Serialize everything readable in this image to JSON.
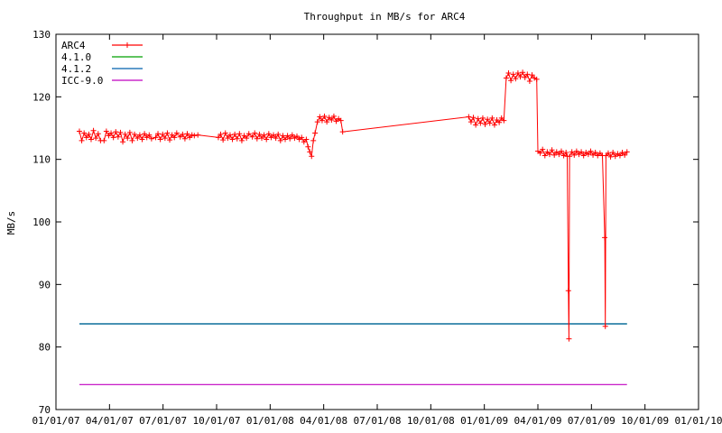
{
  "chart_data": {
    "type": "line",
    "title": "Throughput in MB/s for ARC4",
    "xlabel": "",
    "ylabel": "MB/s",
    "xlim": [
      "2007-01-01",
      "2010-01-01"
    ],
    "ylim": [
      70,
      130
    ],
    "grid": false,
    "legend": "top-left",
    "x_ticks": [
      "01/01/07",
      "04/01/07",
      "07/01/07",
      "10/01/07",
      "01/01/08",
      "04/01/08",
      "07/01/08",
      "10/01/08",
      "01/01/09",
      "04/01/09",
      "07/01/09",
      "10/01/09",
      "01/01/10"
    ],
    "y_ticks": [
      70,
      80,
      90,
      100,
      110,
      120,
      130
    ],
    "series": [
      {
        "name": "ARC4",
        "color": "#ff0000",
        "marker": "plus",
        "points": [
          [
            "2007-02-10",
            114.5
          ],
          [
            "2007-02-14",
            113.0
          ],
          [
            "2007-02-18",
            114.2
          ],
          [
            "2007-02-22",
            113.5
          ],
          [
            "2007-02-26",
            114.0
          ],
          [
            "2007-03-02",
            113.2
          ],
          [
            "2007-03-06",
            114.6
          ],
          [
            "2007-03-10",
            113.4
          ],
          [
            "2007-03-14",
            114.1
          ],
          [
            "2007-03-18",
            113.0
          ],
          [
            "2007-03-24",
            113.0
          ],
          [
            "2007-03-28",
            114.5
          ],
          [
            "2007-04-01",
            113.8
          ],
          [
            "2007-04-05",
            114.2
          ],
          [
            "2007-04-09",
            113.5
          ],
          [
            "2007-04-13",
            114.4
          ],
          [
            "2007-04-17",
            113.6
          ],
          [
            "2007-04-21",
            114.3
          ],
          [
            "2007-04-25",
            112.8
          ],
          [
            "2007-04-29",
            114.0
          ],
          [
            "2007-05-03",
            113.4
          ],
          [
            "2007-05-07",
            114.3
          ],
          [
            "2007-05-11",
            113.0
          ],
          [
            "2007-05-15",
            114.0
          ],
          [
            "2007-05-20",
            113.4
          ],
          [
            "2007-05-24",
            113.9
          ],
          [
            "2007-05-28",
            113.2
          ],
          [
            "2007-06-01",
            114.1
          ],
          [
            "2007-06-05",
            113.5
          ],
          [
            "2007-06-09",
            113.9
          ],
          [
            "2007-06-13",
            113.3
          ],
          [
            "2007-06-20",
            113.5
          ],
          [
            "2007-06-24",
            114.1
          ],
          [
            "2007-06-28",
            113.2
          ],
          [
            "2007-07-02",
            114.0
          ],
          [
            "2007-07-06",
            113.4
          ],
          [
            "2007-07-10",
            114.2
          ],
          [
            "2007-07-14",
            113.1
          ],
          [
            "2007-07-18",
            113.9
          ],
          [
            "2007-07-22",
            113.5
          ],
          [
            "2007-07-26",
            114.2
          ],
          [
            "2007-08-01",
            113.6
          ],
          [
            "2007-08-05",
            114.0
          ],
          [
            "2007-08-09",
            113.3
          ],
          [
            "2007-08-13",
            114.1
          ],
          [
            "2007-08-17",
            113.5
          ],
          [
            "2007-08-21",
            113.9
          ],
          [
            "2007-08-25",
            113.8
          ],
          [
            "2007-08-31",
            113.9
          ],
          [
            "2007-10-05",
            113.5
          ],
          [
            "2007-10-09",
            114.0
          ],
          [
            "2007-10-13",
            113.1
          ],
          [
            "2007-10-17",
            114.2
          ],
          [
            "2007-10-21",
            113.4
          ],
          [
            "2007-10-25",
            113.9
          ],
          [
            "2007-10-29",
            113.2
          ],
          [
            "2007-11-02",
            114.0
          ],
          [
            "2007-11-06",
            113.3
          ],
          [
            "2007-11-10",
            114.1
          ],
          [
            "2007-11-14",
            113.0
          ],
          [
            "2007-11-18",
            113.8
          ],
          [
            "2007-11-22",
            113.4
          ],
          [
            "2007-11-26",
            114.1
          ],
          [
            "2007-12-02",
            113.6
          ],
          [
            "2007-12-06",
            114.2
          ],
          [
            "2007-12-10",
            113.3
          ],
          [
            "2007-12-14",
            114.0
          ],
          [
            "2007-12-18",
            113.4
          ],
          [
            "2007-12-22",
            113.9
          ],
          [
            "2007-12-26",
            113.2
          ],
          [
            "2007-12-30",
            114.1
          ],
          [
            "2008-01-03",
            113.5
          ],
          [
            "2008-01-07",
            113.9
          ],
          [
            "2008-01-11",
            113.4
          ],
          [
            "2008-01-15",
            114.0
          ],
          [
            "2008-01-19",
            113.0
          ],
          [
            "2008-01-23",
            113.8
          ],
          [
            "2008-01-27",
            113.2
          ],
          [
            "2008-01-31",
            113.8
          ],
          [
            "2008-02-04",
            113.3
          ],
          [
            "2008-02-08",
            113.9
          ],
          [
            "2008-02-12",
            113.4
          ],
          [
            "2008-02-16",
            113.7
          ],
          [
            "2008-02-20",
            113.2
          ],
          [
            "2008-02-24",
            113.5
          ],
          [
            "2008-02-28",
            112.8
          ],
          [
            "2008-03-03",
            113.2
          ],
          [
            "2008-03-06",
            112.0
          ],
          [
            "2008-03-09",
            111.2
          ],
          [
            "2008-03-12",
            110.5
          ],
          [
            "2008-03-15",
            113.0
          ],
          [
            "2008-03-18",
            114.2
          ],
          [
            "2008-03-22",
            116.0
          ],
          [
            "2008-03-26",
            116.8
          ],
          [
            "2008-03-30",
            116.2
          ],
          [
            "2008-04-03",
            116.9
          ],
          [
            "2008-04-07",
            116.0
          ],
          [
            "2008-04-11",
            116.7
          ],
          [
            "2008-04-15",
            116.3
          ],
          [
            "2008-04-19",
            116.9
          ],
          [
            "2008-04-23",
            116.1
          ],
          [
            "2008-04-27",
            116.5
          ],
          [
            "2008-05-01",
            116.2
          ],
          [
            "2008-05-04",
            114.4
          ],
          [
            "2008-12-05",
            116.8
          ],
          [
            "2008-12-09",
            116.0
          ],
          [
            "2008-12-13",
            116.7
          ],
          [
            "2008-12-17",
            115.5
          ],
          [
            "2008-12-21",
            116.5
          ],
          [
            "2008-12-25",
            115.8
          ],
          [
            "2008-12-29",
            116.6
          ],
          [
            "2009-01-02",
            115.6
          ],
          [
            "2009-01-06",
            116.4
          ],
          [
            "2009-01-10",
            115.8
          ],
          [
            "2009-01-14",
            116.6
          ],
          [
            "2009-01-18",
            115.5
          ],
          [
            "2009-01-22",
            116.3
          ],
          [
            "2009-01-26",
            115.9
          ],
          [
            "2009-01-30",
            116.6
          ],
          [
            "2009-02-03",
            116.2
          ],
          [
            "2009-02-07",
            123.0
          ],
          [
            "2009-02-11",
            123.8
          ],
          [
            "2009-02-15",
            122.6
          ],
          [
            "2009-02-19",
            123.6
          ],
          [
            "2009-02-23",
            122.9
          ],
          [
            "2009-02-27",
            123.8
          ],
          [
            "2009-03-03",
            123.2
          ],
          [
            "2009-03-07",
            123.9
          ],
          [
            "2009-03-11",
            123.1
          ],
          [
            "2009-03-15",
            123.6
          ],
          [
            "2009-03-19",
            122.5
          ],
          [
            "2009-03-23",
            123.5
          ],
          [
            "2009-03-27",
            123.0
          ],
          [
            "2009-03-31",
            122.8
          ],
          [
            "2009-04-02",
            111.3
          ],
          [
            "2009-04-06",
            111.0
          ],
          [
            "2009-04-10",
            111.6
          ],
          [
            "2009-04-14",
            110.6
          ],
          [
            "2009-04-18",
            111.2
          ],
          [
            "2009-04-22",
            110.8
          ],
          [
            "2009-04-26",
            111.5
          ],
          [
            "2009-04-30",
            110.7
          ],
          [
            "2009-05-04",
            111.2
          ],
          [
            "2009-05-08",
            110.8
          ],
          [
            "2009-05-12",
            111.3
          ],
          [
            "2009-05-16",
            110.6
          ],
          [
            "2009-05-20",
            111.1
          ],
          [
            "2009-05-22",
            110.5
          ],
          [
            "2009-05-24",
            89.0
          ],
          [
            "2009-05-25",
            81.3
          ],
          [
            "2009-05-26",
            110.5
          ],
          [
            "2009-05-30",
            111.2
          ],
          [
            "2009-06-03",
            110.7
          ],
          [
            "2009-06-07",
            111.3
          ],
          [
            "2009-06-11",
            110.8
          ],
          [
            "2009-06-15",
            111.2
          ],
          [
            "2009-06-19",
            110.6
          ],
          [
            "2009-06-23",
            111.1
          ],
          [
            "2009-06-27",
            110.8
          ],
          [
            "2009-07-01",
            111.3
          ],
          [
            "2009-07-05",
            110.7
          ],
          [
            "2009-07-09",
            111.1
          ],
          [
            "2009-07-13",
            110.6
          ],
          [
            "2009-07-17",
            111.0
          ],
          [
            "2009-07-21",
            110.6
          ],
          [
            "2009-07-25",
            97.5
          ],
          [
            "2009-07-26",
            83.3
          ],
          [
            "2009-07-27",
            110.6
          ],
          [
            "2009-07-31",
            111.0
          ],
          [
            "2009-08-04",
            110.4
          ],
          [
            "2009-08-08",
            111.1
          ],
          [
            "2009-08-12",
            110.5
          ],
          [
            "2009-08-16",
            110.9
          ],
          [
            "2009-08-20",
            110.6
          ],
          [
            "2009-08-24",
            111.1
          ],
          [
            "2009-08-28",
            110.7
          ],
          [
            "2009-09-01",
            111.2
          ]
        ]
      },
      {
        "name": "4.1.0",
        "color": "#00a000",
        "points": [
          [
            "2007-02-10",
            83.7
          ],
          [
            "2009-09-01",
            83.7
          ]
        ]
      },
      {
        "name": "4.1.2",
        "color": "#0060ad",
        "points": [
          [
            "2007-02-10",
            83.7
          ],
          [
            "2009-09-01",
            83.7
          ]
        ]
      },
      {
        "name": "ICC-9.0",
        "color": "#c000c0",
        "points": [
          [
            "2007-02-10",
            74.0
          ],
          [
            "2009-09-01",
            74.0
          ]
        ]
      }
    ]
  }
}
